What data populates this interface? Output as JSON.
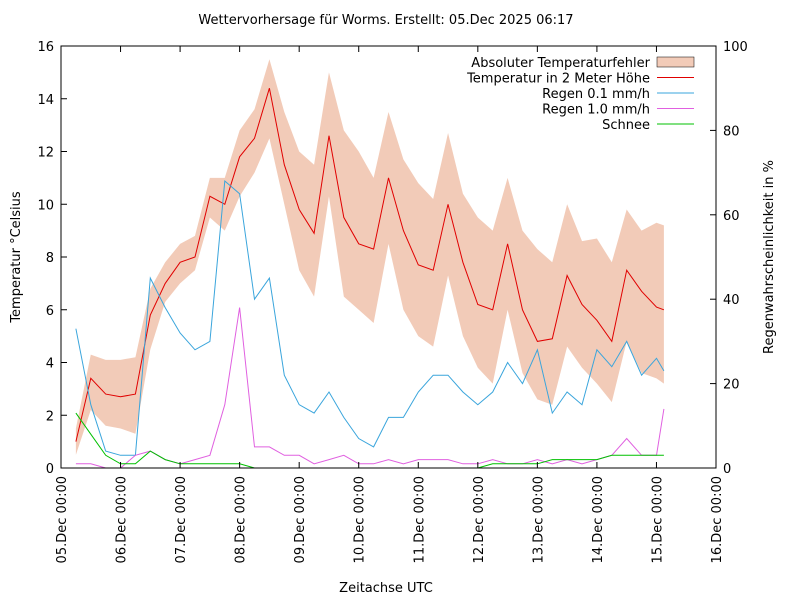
{
  "chart_data": {
    "type": "line",
    "title": "Wettervorhersage für Worms. Erstellt: 05.Dec 2025 06:17",
    "x_label": "Zeitachse UTC",
    "y_label": "Temperatur °Celsius",
    "y2_label": "Regenwahrscheinlichkeit in %",
    "x": [
      "05.Dec 06:00",
      "05.Dec 12:00",
      "05.Dec 18:00",
      "06.Dec 00:00",
      "06.Dec 06:00",
      "06.Dec 12:00",
      "06.Dec 18:00",
      "07.Dec 00:00",
      "07.Dec 06:00",
      "07.Dec 12:00",
      "07.Dec 18:00",
      "08.Dec 00:00",
      "08.Dec 06:00",
      "08.Dec 12:00",
      "08.Dec 18:00",
      "09.Dec 00:00",
      "09.Dec 06:00",
      "09.Dec 12:00",
      "09.Dec 18:00",
      "10.Dec 00:00",
      "10.Dec 06:00",
      "10.Dec 12:00",
      "10.Dec 18:00",
      "11.Dec 00:00",
      "11.Dec 06:00",
      "11.Dec 12:00",
      "11.Dec 18:00",
      "12.Dec 00:00",
      "12.Dec 06:00",
      "12.Dec 12:00",
      "12.Dec 18:00",
      "13.Dec 00:00",
      "13.Dec 06:00",
      "13.Dec 12:00",
      "13.Dec 18:00",
      "14.Dec 00:00",
      "14.Dec 06:00",
      "14.Dec 12:00",
      "14.Dec 18:00",
      "15.Dec 00:00",
      "15.Dec 03:00"
    ],
    "xlim": [
      "05.Dec 00:00",
      "16.Dec 00:00"
    ],
    "xticks": [
      "05.Dec 00:00",
      "06.Dec 00:00",
      "07.Dec 00:00",
      "08.Dec 00:00",
      "09.Dec 00:00",
      "10.Dec 00:00",
      "11.Dec 00:00",
      "12.Dec 00:00",
      "13.Dec 00:00",
      "14.Dec 00:00",
      "15.Dec 00:00",
      "16.Dec 00:00"
    ],
    "ylim": [
      0,
      16
    ],
    "yticks": [
      0,
      2,
      4,
      6,
      8,
      10,
      12,
      14,
      16
    ],
    "y2lim": [
      0,
      100
    ],
    "y2ticks": [
      0,
      20,
      40,
      60,
      80,
      100
    ],
    "legend": "top-right",
    "series": [
      {
        "name": "Absoluter Temperaturfehler",
        "type": "band",
        "color": "#f2cbb8",
        "low": [
          0.5,
          2.2,
          1.6,
          1.5,
          1.3,
          4.5,
          6.3,
          7.0,
          7.5,
          9.5,
          9.0,
          10.3,
          11.2,
          12.5,
          10.0,
          7.5,
          6.5,
          10.3,
          6.5,
          6.0,
          5.5,
          8.5,
          6.0,
          5.0,
          4.6,
          7.3,
          5.0,
          3.8,
          3.2,
          6.0,
          3.6,
          2.6,
          2.4,
          4.6,
          3.8,
          3.2,
          2.5,
          4.8,
          3.6,
          3.4,
          3.2
        ],
        "high": [
          1.5,
          4.3,
          4.1,
          4.1,
          4.2,
          6.8,
          7.8,
          8.5,
          8.8,
          11.0,
          11.0,
          12.8,
          13.6,
          15.5,
          13.5,
          12.0,
          11.5,
          15.0,
          12.8,
          12.0,
          11.0,
          13.5,
          11.7,
          10.8,
          10.2,
          12.7,
          10.4,
          9.5,
          9.0,
          11.0,
          9.0,
          8.3,
          7.8,
          10.0,
          8.6,
          8.7,
          7.8,
          9.8,
          9.0,
          9.3,
          9.2
        ]
      },
      {
        "name": "Temperatur in 2 Meter Höhe",
        "color": "#e00000",
        "values": [
          1.0,
          3.4,
          2.8,
          2.7,
          2.8,
          5.8,
          7.0,
          7.8,
          8.0,
          10.3,
          10.0,
          11.8,
          12.5,
          14.4,
          11.5,
          9.8,
          8.9,
          12.6,
          9.5,
          8.5,
          8.3,
          11.0,
          9.0,
          7.7,
          7.5,
          10.0,
          7.8,
          6.2,
          6.0,
          8.5,
          6.0,
          4.8,
          4.9,
          7.3,
          6.2,
          5.6,
          4.8,
          7.5,
          6.7,
          6.1,
          6.0
        ]
      },
      {
        "name": "Regen 0.1 mm/h",
        "color": "#3aa5dc",
        "axis": "y2",
        "values": [
          33,
          15,
          4,
          3,
          3,
          45,
          38,
          32,
          28,
          30,
          68,
          65,
          40,
          45,
          22,
          15,
          13,
          18,
          12,
          7,
          5,
          12,
          12,
          18,
          22,
          22,
          18,
          15,
          18,
          25,
          20,
          28,
          13,
          18,
          15,
          28,
          24,
          30,
          22,
          26,
          23
        ]
      },
      {
        "name": "Regen 1.0 mm/h",
        "color": "#e060e0",
        "axis": "y2",
        "values": [
          1,
          1,
          0,
          0,
          3,
          4,
          2,
          1,
          2,
          3,
          15,
          38,
          5,
          5,
          3,
          3,
          1,
          2,
          3,
          1,
          1,
          2,
          1,
          2,
          2,
          2,
          1,
          1,
          2,
          1,
          1,
          2,
          1,
          2,
          1,
          2,
          3,
          7,
          3,
          3,
          14
        ]
      },
      {
        "name": "Schnee",
        "color": "#00c000",
        "axis": "y2",
        "values": [
          13,
          8,
          3,
          1,
          1,
          4,
          2,
          1,
          1,
          1,
          1,
          1,
          0,
          0,
          0,
          0,
          0,
          0,
          0,
          0,
          0,
          0,
          0,
          0,
          0,
          0,
          0,
          0,
          1,
          1,
          1,
          1,
          2,
          2,
          2,
          2,
          3,
          3,
          3,
          3,
          3
        ]
      }
    ]
  }
}
